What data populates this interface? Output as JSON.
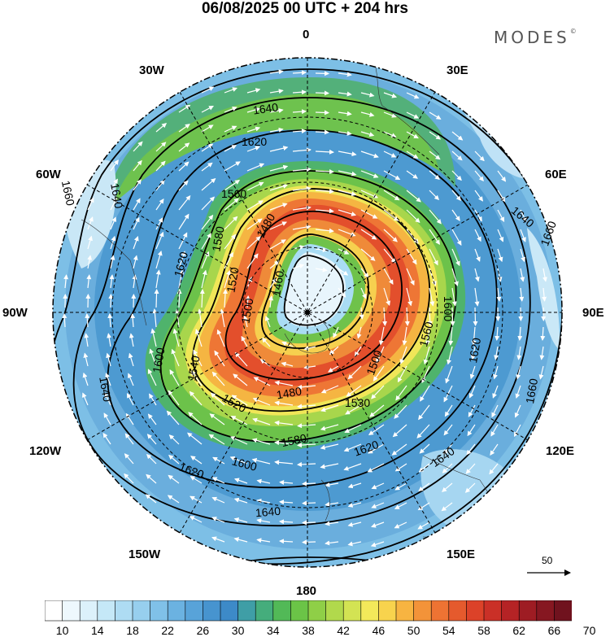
{
  "title": "06/08/2025  00 UTC  + 204 hrs",
  "brand": {
    "name": "MODES",
    "mark": "©"
  },
  "longitude_labels": {
    "n": "0",
    "ne": "30E",
    "ene": "60E",
    "e": "90E",
    "ese": "120E",
    "se": "150E",
    "s": "180",
    "sw": "150W",
    "wsw": "120W",
    "w": "90W",
    "wnw": "60W",
    "nw": "30W"
  },
  "contour_labels": [
    {
      "text": "1640",
      "id": "c1640a"
    },
    {
      "text": "1620",
      "id": "c1620a"
    },
    {
      "text": "1660",
      "id": "c1660a"
    },
    {
      "text": "1640",
      "id": "c1640b"
    },
    {
      "text": "1560",
      "id": "c1560a"
    },
    {
      "text": "1640",
      "id": "c1640c"
    },
    {
      "text": "1660",
      "id": "c1660b"
    },
    {
      "text": "1480",
      "id": "c1480a"
    },
    {
      "text": "1580",
      "id": "c1580a"
    },
    {
      "text": "1620",
      "id": "c1620b"
    },
    {
      "text": "1460",
      "id": "c1460a"
    },
    {
      "text": "1600",
      "id": "c1600a"
    },
    {
      "text": "1520",
      "id": "c1520a"
    },
    {
      "text": "1500",
      "id": "c1500a"
    },
    {
      "text": "1500",
      "id": "c1500b"
    },
    {
      "text": "1560",
      "id": "c1560b"
    },
    {
      "text": "1620",
      "id": "c1620c"
    },
    {
      "text": "1660",
      "id": "c1660c"
    },
    {
      "text": "1600",
      "id": "c1600b"
    },
    {
      "text": "1540",
      "id": "c1540a"
    },
    {
      "text": "1480",
      "id": "c1480b"
    },
    {
      "text": "1520",
      "id": "c1520b"
    },
    {
      "text": "1530",
      "id": "c1530a"
    },
    {
      "text": "1640",
      "id": "c1640d"
    },
    {
      "text": "1580",
      "id": "c1580b"
    },
    {
      "text": "1620",
      "id": "c1620d"
    },
    {
      "text": "1640",
      "id": "c1640e"
    },
    {
      "text": "1600",
      "id": "c1600c"
    },
    {
      "text": "1620",
      "id": "c1620e"
    },
    {
      "text": "1640",
      "id": "c1640f"
    }
  ],
  "vector_scale": {
    "value": "50"
  },
  "colorbar": {
    "tick_labels": [
      "10",
      "14",
      "18",
      "22",
      "26",
      "30",
      "34",
      "38",
      "42",
      "46",
      "50",
      "54",
      "58",
      "62",
      "66",
      "70"
    ],
    "colors": [
      "#ffffff",
      "#eef8fd",
      "#dcf1fb",
      "#c5e8f7",
      "#aedcf3",
      "#97cfee",
      "#80c1e8",
      "#6bb2e1",
      "#58a3d9",
      "#4794cf",
      "#3d8ac8",
      "#3f9ea6",
      "#45ad7c",
      "#52b957",
      "#6bc447",
      "#8fcf47",
      "#b1d94c",
      "#d3e353",
      "#f3e95a",
      "#f8d34d",
      "#f7b441",
      "#f39339",
      "#ee7333",
      "#e55a2d",
      "#dc4229",
      "#ca3027",
      "#b52325",
      "#9e1c23",
      "#861721",
      "#70121e"
    ]
  }
}
